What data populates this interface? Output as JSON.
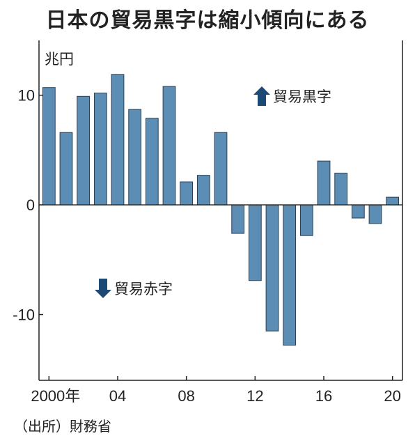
{
  "title": "日本の貿易黒字は縮小傾向にある",
  "source": "（出所）財務省",
  "chart_data": {
    "type": "bar",
    "title": "日本の貿易黒字は縮小傾向にある",
    "unit": "兆円",
    "x": [
      2000,
      2001,
      2002,
      2003,
      2004,
      2005,
      2006,
      2007,
      2008,
      2009,
      2010,
      2011,
      2012,
      2013,
      2014,
      2015,
      2016,
      2017,
      2018,
      2019,
      2020
    ],
    "values": [
      10.7,
      6.6,
      9.9,
      10.2,
      11.9,
      8.7,
      7.9,
      10.8,
      2.1,
      2.7,
      6.6,
      -2.6,
      -6.9,
      -11.5,
      -12.8,
      -2.8,
      4.0,
      2.9,
      -1.2,
      -1.7,
      0.7
    ],
    "x_tick_labels": [
      {
        "x": 2000,
        "label": "2000年"
      },
      {
        "x": 2004,
        "label": "04"
      },
      {
        "x": 2008,
        "label": "08"
      },
      {
        "x": 2012,
        "label": "12"
      },
      {
        "x": 2016,
        "label": "16"
      },
      {
        "x": 2020,
        "label": "20"
      }
    ],
    "y_ticks": [
      10,
      0,
      -10
    ],
    "ylim": [
      -16,
      15
    ],
    "annotations": {
      "surplus": "貿易黒字",
      "deficit": "貿易赤字"
    },
    "bar_color": "#5b8db5",
    "arrow_color": "#1c4a74",
    "grid": false
  }
}
